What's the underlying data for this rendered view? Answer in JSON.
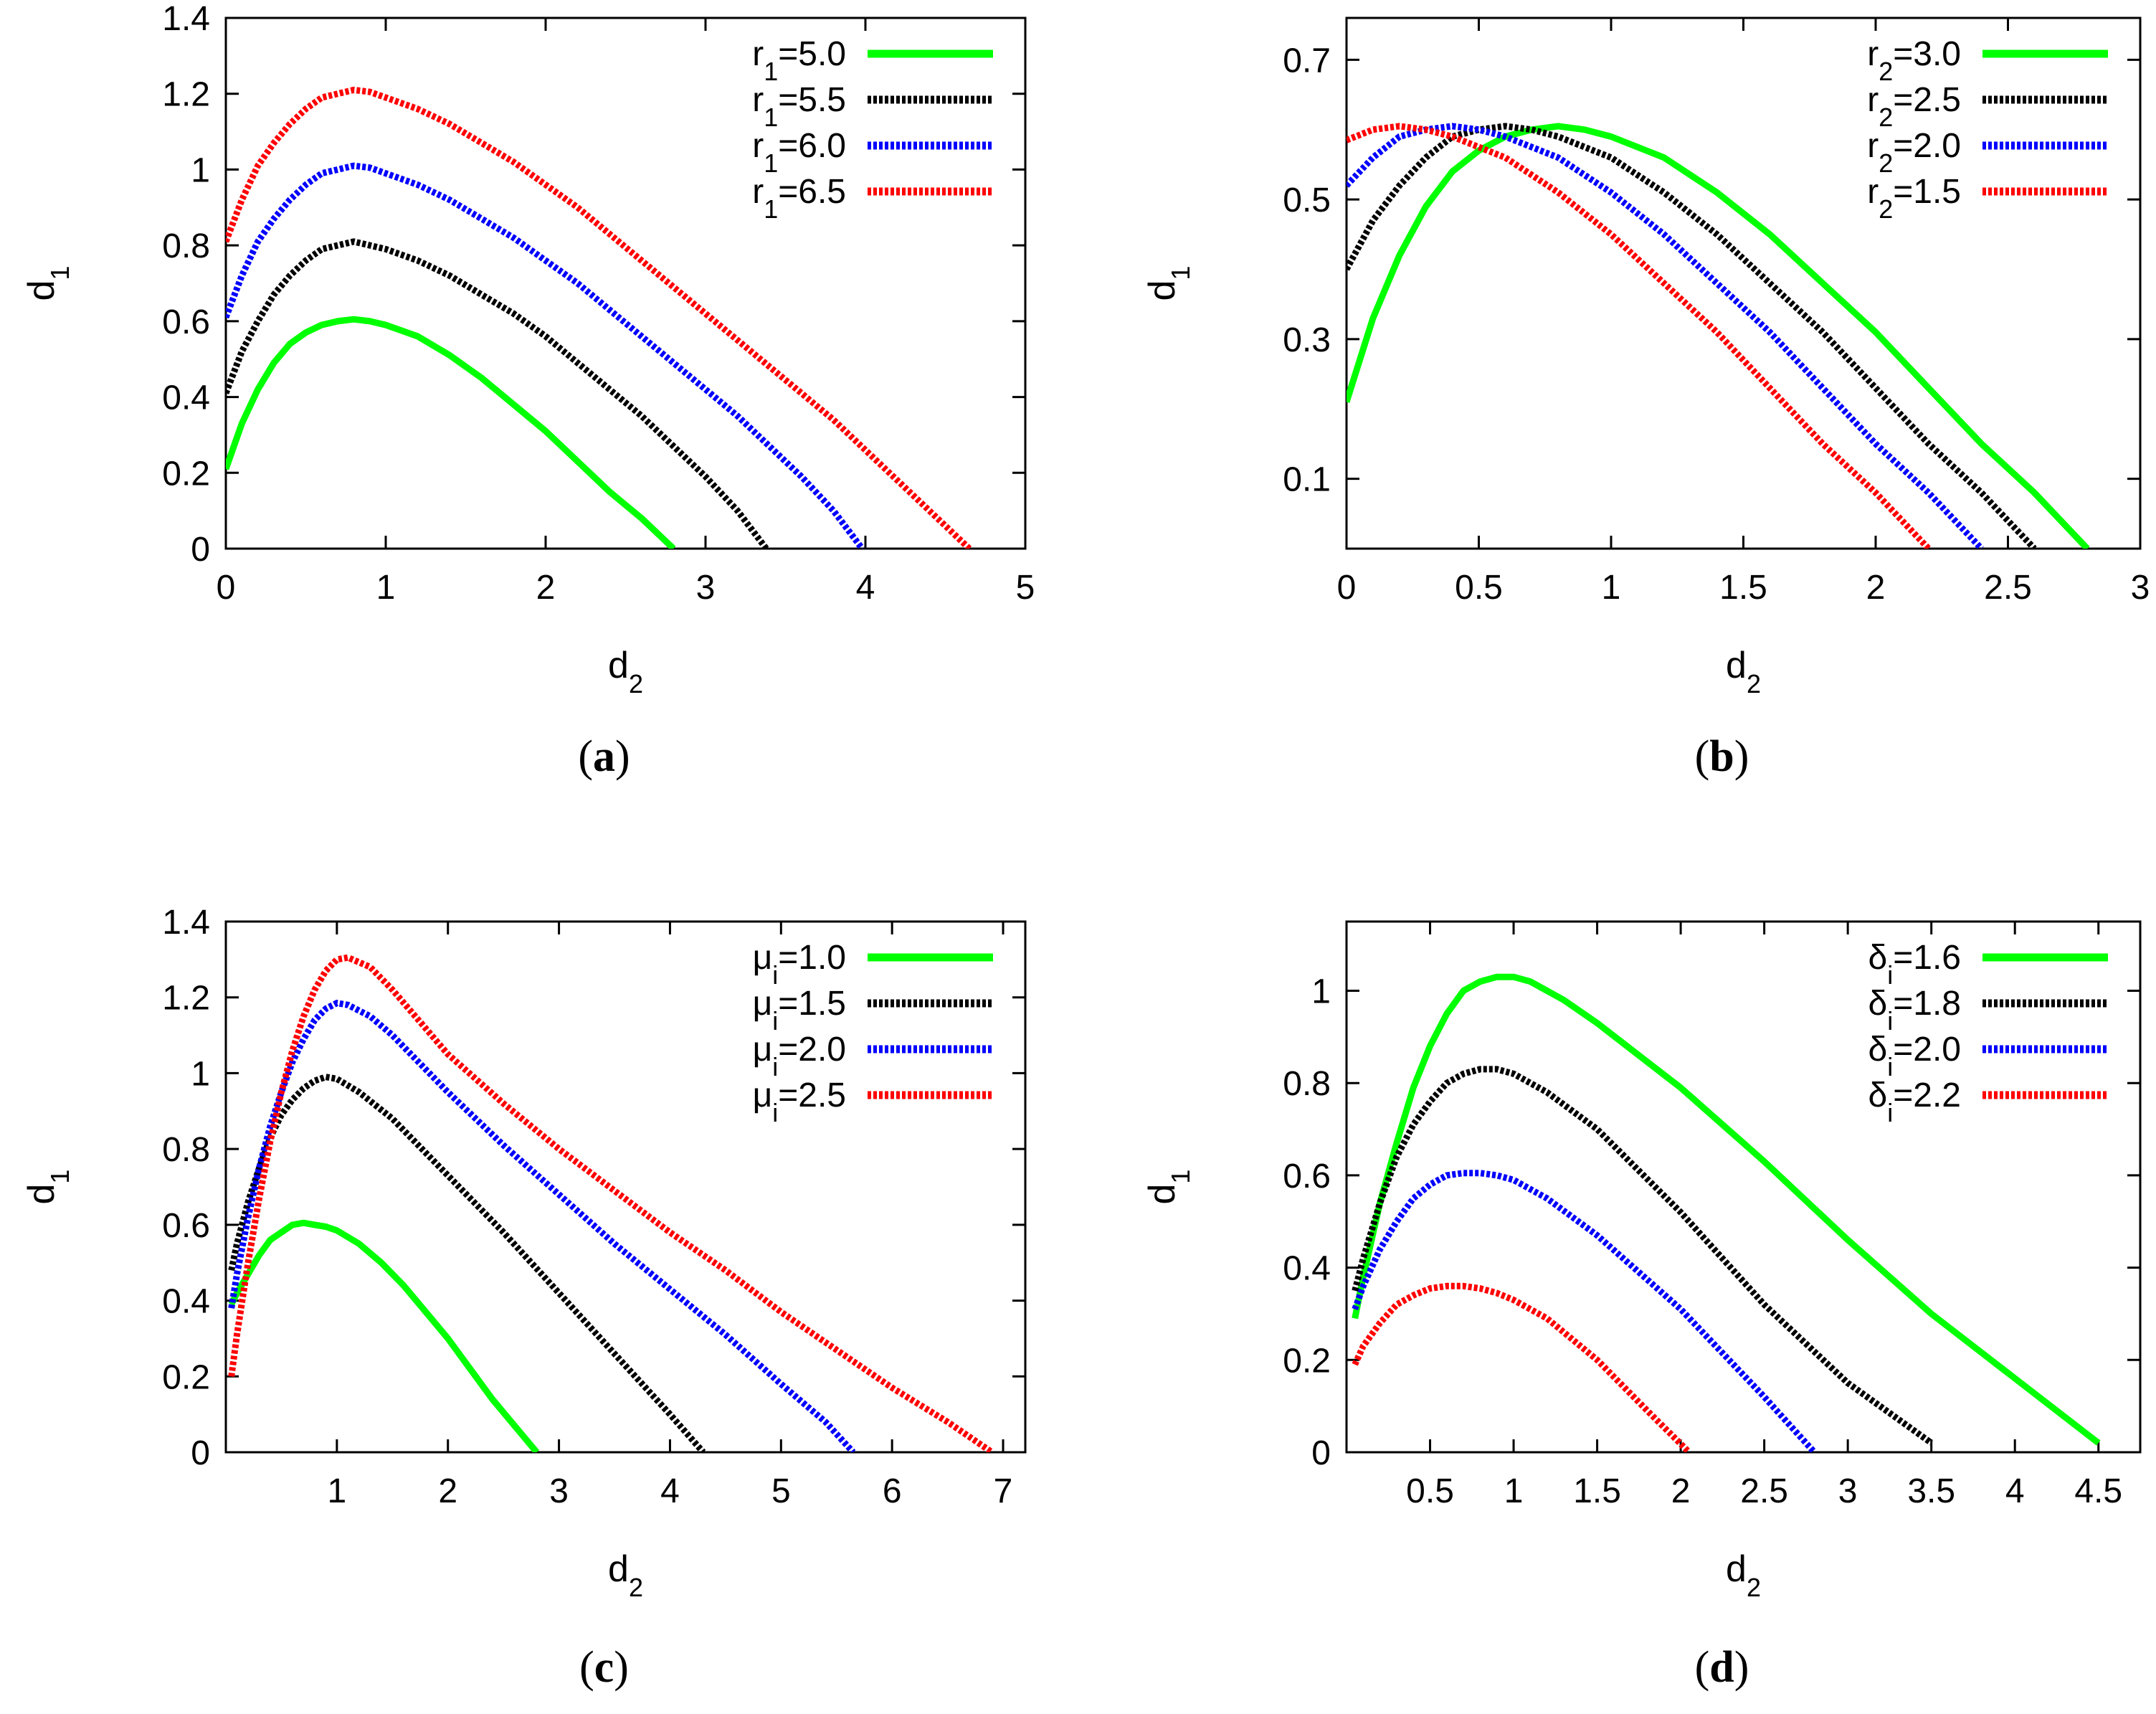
{
  "chart_data": [
    {
      "type": "line",
      "panel_label": "a",
      "xlabel": "d",
      "xlabel_sub": "2",
      "ylabel": "d",
      "ylabel_sub": "1",
      "xlim": [
        0,
        5
      ],
      "ylim": [
        0,
        1.4
      ],
      "xticks": [
        0,
        1,
        2,
        3,
        4,
        5
      ],
      "xtick_labels": [
        "0",
        "1",
        "2",
        "3",
        "4",
        "5"
      ],
      "yticks": [
        0,
        0.2,
        0.4,
        0.6,
        0.8,
        1,
        1.2,
        1.4
      ],
      "ytick_labels": [
        "0",
        "0.2",
        "0.4",
        "0.6",
        "0.8",
        "1",
        "1.2",
        "1.4"
      ],
      "grid": false,
      "legend_position": "top-right",
      "series": [
        {
          "name": "r1=5.0",
          "label_main": "r",
          "label_sub": "1",
          "label_rest": "=5.0",
          "color": "#00ff00",
          "dashed": false,
          "x": [
            0,
            0.1,
            0.2,
            0.3,
            0.4,
            0.5,
            0.6,
            0.7,
            0.8,
            0.9,
            1.0,
            1.2,
            1.4,
            1.6,
            1.8,
            2.0,
            2.2,
            2.4,
            2.6,
            2.8
          ],
          "y": [
            0.21,
            0.33,
            0.42,
            0.49,
            0.54,
            0.57,
            0.59,
            0.6,
            0.605,
            0.6,
            0.59,
            0.56,
            0.51,
            0.45,
            0.38,
            0.31,
            0.23,
            0.15,
            0.08,
            0.0
          ]
        },
        {
          "name": "r1=5.5",
          "label_main": "r",
          "label_sub": "1",
          "label_rest": "=5.5",
          "color": "#000000",
          "dashed": true,
          "x": [
            0,
            0.1,
            0.2,
            0.3,
            0.4,
            0.5,
            0.6,
            0.7,
            0.8,
            0.9,
            1.0,
            1.2,
            1.4,
            1.6,
            1.8,
            2.0,
            2.2,
            2.4,
            2.6,
            2.8,
            3.0,
            3.2,
            3.38
          ],
          "y": [
            0.41,
            0.52,
            0.6,
            0.67,
            0.72,
            0.76,
            0.79,
            0.8,
            0.81,
            0.8,
            0.79,
            0.76,
            0.72,
            0.67,
            0.62,
            0.56,
            0.49,
            0.42,
            0.35,
            0.27,
            0.19,
            0.1,
            0.0
          ]
        },
        {
          "name": "r1=6.0",
          "label_main": "r",
          "label_sub": "1",
          "label_rest": "=6.0",
          "color": "#0000ff",
          "dashed": true,
          "x": [
            0,
            0.1,
            0.2,
            0.3,
            0.4,
            0.5,
            0.6,
            0.7,
            0.8,
            0.9,
            1.0,
            1.2,
            1.4,
            1.6,
            1.8,
            2.0,
            2.2,
            2.4,
            2.6,
            2.8,
            3.0,
            3.2,
            3.4,
            3.6,
            3.8,
            3.98
          ],
          "y": [
            0.61,
            0.72,
            0.81,
            0.87,
            0.92,
            0.96,
            0.99,
            1.0,
            1.01,
            1.005,
            0.99,
            0.96,
            0.92,
            0.87,
            0.82,
            0.76,
            0.7,
            0.63,
            0.56,
            0.49,
            0.42,
            0.35,
            0.27,
            0.19,
            0.1,
            0.0
          ]
        },
        {
          "name": "r1=6.5",
          "label_main": "r",
          "label_sub": "1",
          "label_rest": "=6.5",
          "color": "#ff0000",
          "dashed": true,
          "x": [
            0,
            0.1,
            0.2,
            0.3,
            0.4,
            0.5,
            0.6,
            0.7,
            0.8,
            0.9,
            1.0,
            1.2,
            1.4,
            1.6,
            1.8,
            2.0,
            2.2,
            2.4,
            2.6,
            2.8,
            3.0,
            3.2,
            3.4,
            3.6,
            3.8,
            4.0,
            4.2,
            4.4,
            4.65
          ],
          "y": [
            0.81,
            0.92,
            1.01,
            1.07,
            1.12,
            1.16,
            1.19,
            1.2,
            1.21,
            1.205,
            1.19,
            1.16,
            1.12,
            1.07,
            1.02,
            0.96,
            0.9,
            0.83,
            0.76,
            0.69,
            0.62,
            0.55,
            0.48,
            0.41,
            0.34,
            0.26,
            0.18,
            0.1,
            0.0
          ]
        }
      ]
    },
    {
      "type": "line",
      "panel_label": "b",
      "xlabel": "d",
      "xlabel_sub": "2",
      "ylabel": "d",
      "ylabel_sub": "1",
      "xlim": [
        0,
        3
      ],
      "ylim": [
        0,
        0.76
      ],
      "xticks": [
        0,
        0.5,
        1,
        1.5,
        2,
        2.5,
        3
      ],
      "xtick_labels": [
        "0",
        "0.5",
        "1",
        "1.5",
        "2",
        "2.5",
        "3"
      ],
      "yticks": [
        0.1,
        0.3,
        0.5,
        0.7
      ],
      "ytick_labels": [
        "0.1",
        "0.3",
        "0.5",
        "0.7"
      ],
      "grid": false,
      "legend_position": "top-right",
      "series": [
        {
          "name": "r2=3.0",
          "label_main": "r",
          "label_sub": "2",
          "label_rest": "=3.0",
          "color": "#00ff00",
          "dashed": false,
          "x": [
            0,
            0.1,
            0.2,
            0.3,
            0.4,
            0.5,
            0.6,
            0.7,
            0.8,
            0.9,
            1.0,
            1.2,
            1.4,
            1.6,
            1.8,
            2.0,
            2.2,
            2.4,
            2.6,
            2.8
          ],
          "y": [
            0.21,
            0.33,
            0.42,
            0.49,
            0.54,
            0.57,
            0.59,
            0.6,
            0.605,
            0.6,
            0.59,
            0.56,
            0.51,
            0.45,
            0.38,
            0.31,
            0.23,
            0.15,
            0.08,
            0.0
          ]
        },
        {
          "name": "r2=2.5",
          "label_main": "r",
          "label_sub": "2",
          "label_rest": "=2.5",
          "color": "#000000",
          "dashed": true,
          "x": [
            0,
            0.1,
            0.2,
            0.3,
            0.4,
            0.5,
            0.6,
            0.7,
            0.8,
            1.0,
            1.2,
            1.4,
            1.6,
            1.8,
            2.0,
            2.2,
            2.4,
            2.6
          ],
          "y": [
            0.4,
            0.47,
            0.52,
            0.56,
            0.59,
            0.6,
            0.605,
            0.6,
            0.59,
            0.56,
            0.51,
            0.45,
            0.38,
            0.31,
            0.23,
            0.15,
            0.08,
            0.0
          ]
        },
        {
          "name": "r2=2.0",
          "label_main": "r",
          "label_sub": "2",
          "label_rest": "=2.0",
          "color": "#0000ff",
          "dashed": true,
          "x": [
            0,
            0.1,
            0.2,
            0.3,
            0.4,
            0.5,
            0.6,
            0.8,
            1.0,
            1.2,
            1.4,
            1.6,
            1.8,
            2.0,
            2.2,
            2.4
          ],
          "y": [
            0.52,
            0.56,
            0.59,
            0.6,
            0.605,
            0.6,
            0.59,
            0.56,
            0.51,
            0.45,
            0.38,
            0.31,
            0.23,
            0.15,
            0.08,
            0.0
          ]
        },
        {
          "name": "r2=1.5",
          "label_main": "r",
          "label_sub": "2",
          "label_rest": "=1.5",
          "color": "#ff0000",
          "dashed": true,
          "x": [
            0,
            0.1,
            0.2,
            0.3,
            0.4,
            0.6,
            0.8,
            1.0,
            1.2,
            1.4,
            1.6,
            1.8,
            2.0,
            2.2
          ],
          "y": [
            0.585,
            0.6,
            0.605,
            0.6,
            0.59,
            0.56,
            0.51,
            0.45,
            0.38,
            0.31,
            0.23,
            0.15,
            0.08,
            0.0
          ]
        }
      ]
    },
    {
      "type": "line",
      "panel_label": "c",
      "xlabel": "d",
      "xlabel_sub": "2",
      "ylabel": "d",
      "ylabel_sub": "1",
      "xlim": [
        0,
        7.2
      ],
      "ylim": [
        0,
        1.4
      ],
      "xticks": [
        1,
        2,
        3,
        4,
        5,
        6,
        7
      ],
      "xtick_labels": [
        "1",
        "2",
        "3",
        "4",
        "5",
        "6",
        "7"
      ],
      "yticks": [
        0,
        0.2,
        0.4,
        0.6,
        0.8,
        1,
        1.2,
        1.4
      ],
      "ytick_labels": [
        "0",
        "0.2",
        "0.4",
        "0.6",
        "0.8",
        "1",
        "1.2",
        "1.4"
      ],
      "grid": false,
      "legend_position": "top-right",
      "series": [
        {
          "name": "μi=1.0",
          "label_main": "μ",
          "label_sub": "i",
          "label_rest": "=1.0",
          "color": "#00ff00",
          "dashed": false,
          "x": [
            0.05,
            0.1,
            0.2,
            0.3,
            0.4,
            0.5,
            0.6,
            0.7,
            0.8,
            0.9,
            1.0,
            1.2,
            1.4,
            1.6,
            1.8,
            2.0,
            2.2,
            2.4,
            2.6,
            2.8
          ],
          "y": [
            0.39,
            0.42,
            0.47,
            0.52,
            0.56,
            0.58,
            0.6,
            0.605,
            0.6,
            0.595,
            0.585,
            0.55,
            0.5,
            0.44,
            0.37,
            0.3,
            0.22,
            0.14,
            0.07,
            0.0
          ]
        },
        {
          "name": "μi=1.5",
          "label_main": "μ",
          "label_sub": "i",
          "label_rest": "=1.5",
          "color": "#000000",
          "dashed": true,
          "x": [
            0.05,
            0.1,
            0.2,
            0.3,
            0.4,
            0.5,
            0.6,
            0.7,
            0.8,
            0.9,
            1.0,
            1.2,
            1.5,
            2.0,
            2.5,
            3.0,
            3.5,
            4.0,
            4.3
          ],
          "y": [
            0.48,
            0.55,
            0.66,
            0.75,
            0.83,
            0.89,
            0.93,
            0.96,
            0.98,
            0.99,
            0.985,
            0.95,
            0.88,
            0.73,
            0.58,
            0.42,
            0.26,
            0.1,
            0.0
          ]
        },
        {
          "name": "μi=2.0",
          "label_main": "μ",
          "label_sub": "i",
          "label_rest": "=2.0",
          "color": "#0000ff",
          "dashed": true,
          "x": [
            0.05,
            0.1,
            0.2,
            0.3,
            0.4,
            0.5,
            0.6,
            0.7,
            0.8,
            0.9,
            1.0,
            1.1,
            1.3,
            1.5,
            2.0,
            2.5,
            3.0,
            3.5,
            4.0,
            4.5,
            5.0,
            5.4,
            5.65
          ],
          "y": [
            0.38,
            0.47,
            0.62,
            0.75,
            0.86,
            0.95,
            1.03,
            1.09,
            1.14,
            1.17,
            1.185,
            1.18,
            1.15,
            1.1,
            0.95,
            0.81,
            0.68,
            0.55,
            0.43,
            0.31,
            0.18,
            0.08,
            0.0
          ]
        },
        {
          "name": "μi=2.5",
          "label_main": "μ",
          "label_sub": "i",
          "label_rest": "=2.5",
          "color": "#ff0000",
          "dashed": true,
          "x": [
            0.05,
            0.1,
            0.2,
            0.3,
            0.4,
            0.5,
            0.6,
            0.7,
            0.8,
            0.9,
            1.0,
            1.1,
            1.3,
            1.5,
            2.0,
            2.5,
            3.0,
            3.5,
            4.0,
            4.5,
            5.0,
            5.5,
            6.0,
            6.5,
            6.9
          ],
          "y": [
            0.2,
            0.31,
            0.5,
            0.67,
            0.82,
            0.95,
            1.06,
            1.15,
            1.22,
            1.27,
            1.3,
            1.305,
            1.28,
            1.22,
            1.05,
            0.92,
            0.8,
            0.69,
            0.58,
            0.48,
            0.37,
            0.27,
            0.17,
            0.08,
            0.0
          ]
        }
      ]
    },
    {
      "type": "line",
      "panel_label": "d",
      "xlabel": "d",
      "xlabel_sub": "2",
      "ylabel": "d",
      "ylabel_sub": "1",
      "xlim": [
        0,
        4.75
      ],
      "ylim": [
        0,
        1.15
      ],
      "xticks": [
        0.5,
        1,
        1.5,
        2,
        2.5,
        3,
        3.5,
        4,
        4.5
      ],
      "xtick_labels": [
        "0.5",
        "1",
        "1.5",
        "2",
        "2.5",
        "3",
        "3.5",
        "4",
        "4.5"
      ],
      "yticks": [
        0,
        0.2,
        0.4,
        0.6,
        0.8,
        1
      ],
      "ytick_labels": [
        "0",
        "0.2",
        "0.4",
        "0.6",
        "0.8",
        "1"
      ],
      "grid": false,
      "legend_position": "top-right",
      "series": [
        {
          "name": "δi=1.6",
          "label_main": "δ",
          "label_sub": "i",
          "label_rest": "=1.6",
          "color": "#00ff00",
          "dashed": false,
          "x": [
            0.05,
            0.1,
            0.2,
            0.3,
            0.4,
            0.5,
            0.6,
            0.7,
            0.8,
            0.9,
            1.0,
            1.1,
            1.3,
            1.5,
            2.0,
            2.5,
            3.0,
            3.5,
            4.0,
            4.5
          ],
          "y": [
            0.29,
            0.38,
            0.54,
            0.67,
            0.79,
            0.88,
            0.95,
            1.0,
            1.02,
            1.03,
            1.03,
            1.02,
            0.98,
            0.93,
            0.79,
            0.63,
            0.46,
            0.3,
            0.16,
            0.02
          ]
        },
        {
          "name": "δi=1.8",
          "label_main": "δ",
          "label_sub": "i",
          "label_rest": "=1.8",
          "color": "#000000",
          "dashed": true,
          "x": [
            0.05,
            0.1,
            0.2,
            0.3,
            0.4,
            0.5,
            0.6,
            0.7,
            0.8,
            0.9,
            1.0,
            1.2,
            1.5,
            2.0,
            2.5,
            3.0,
            3.5
          ],
          "y": [
            0.35,
            0.42,
            0.54,
            0.64,
            0.71,
            0.76,
            0.8,
            0.82,
            0.83,
            0.83,
            0.82,
            0.78,
            0.7,
            0.52,
            0.32,
            0.15,
            0.02
          ]
        },
        {
          "name": "δi=2.0",
          "label_main": "δ",
          "label_sub": "i",
          "label_rest": "=2.0",
          "color": "#0000ff",
          "dashed": true,
          "x": [
            0.05,
            0.1,
            0.2,
            0.3,
            0.4,
            0.5,
            0.6,
            0.7,
            0.8,
            0.9,
            1.0,
            1.2,
            1.5,
            2.0,
            2.5,
            2.8
          ],
          "y": [
            0.31,
            0.36,
            0.44,
            0.5,
            0.55,
            0.58,
            0.6,
            0.605,
            0.605,
            0.6,
            0.59,
            0.55,
            0.47,
            0.31,
            0.12,
            0.0
          ]
        },
        {
          "name": "δi=2.2",
          "label_main": "δ",
          "label_sub": "i",
          "label_rest": "=2.2",
          "color": "#ff0000",
          "dashed": true,
          "x": [
            0.05,
            0.1,
            0.2,
            0.3,
            0.4,
            0.5,
            0.6,
            0.7,
            0.8,
            0.9,
            1.0,
            1.2,
            1.5,
            1.8,
            2.05
          ],
          "y": [
            0.19,
            0.23,
            0.28,
            0.32,
            0.34,
            0.355,
            0.36,
            0.36,
            0.355,
            0.345,
            0.33,
            0.29,
            0.2,
            0.09,
            0.0
          ]
        }
      ]
    }
  ]
}
